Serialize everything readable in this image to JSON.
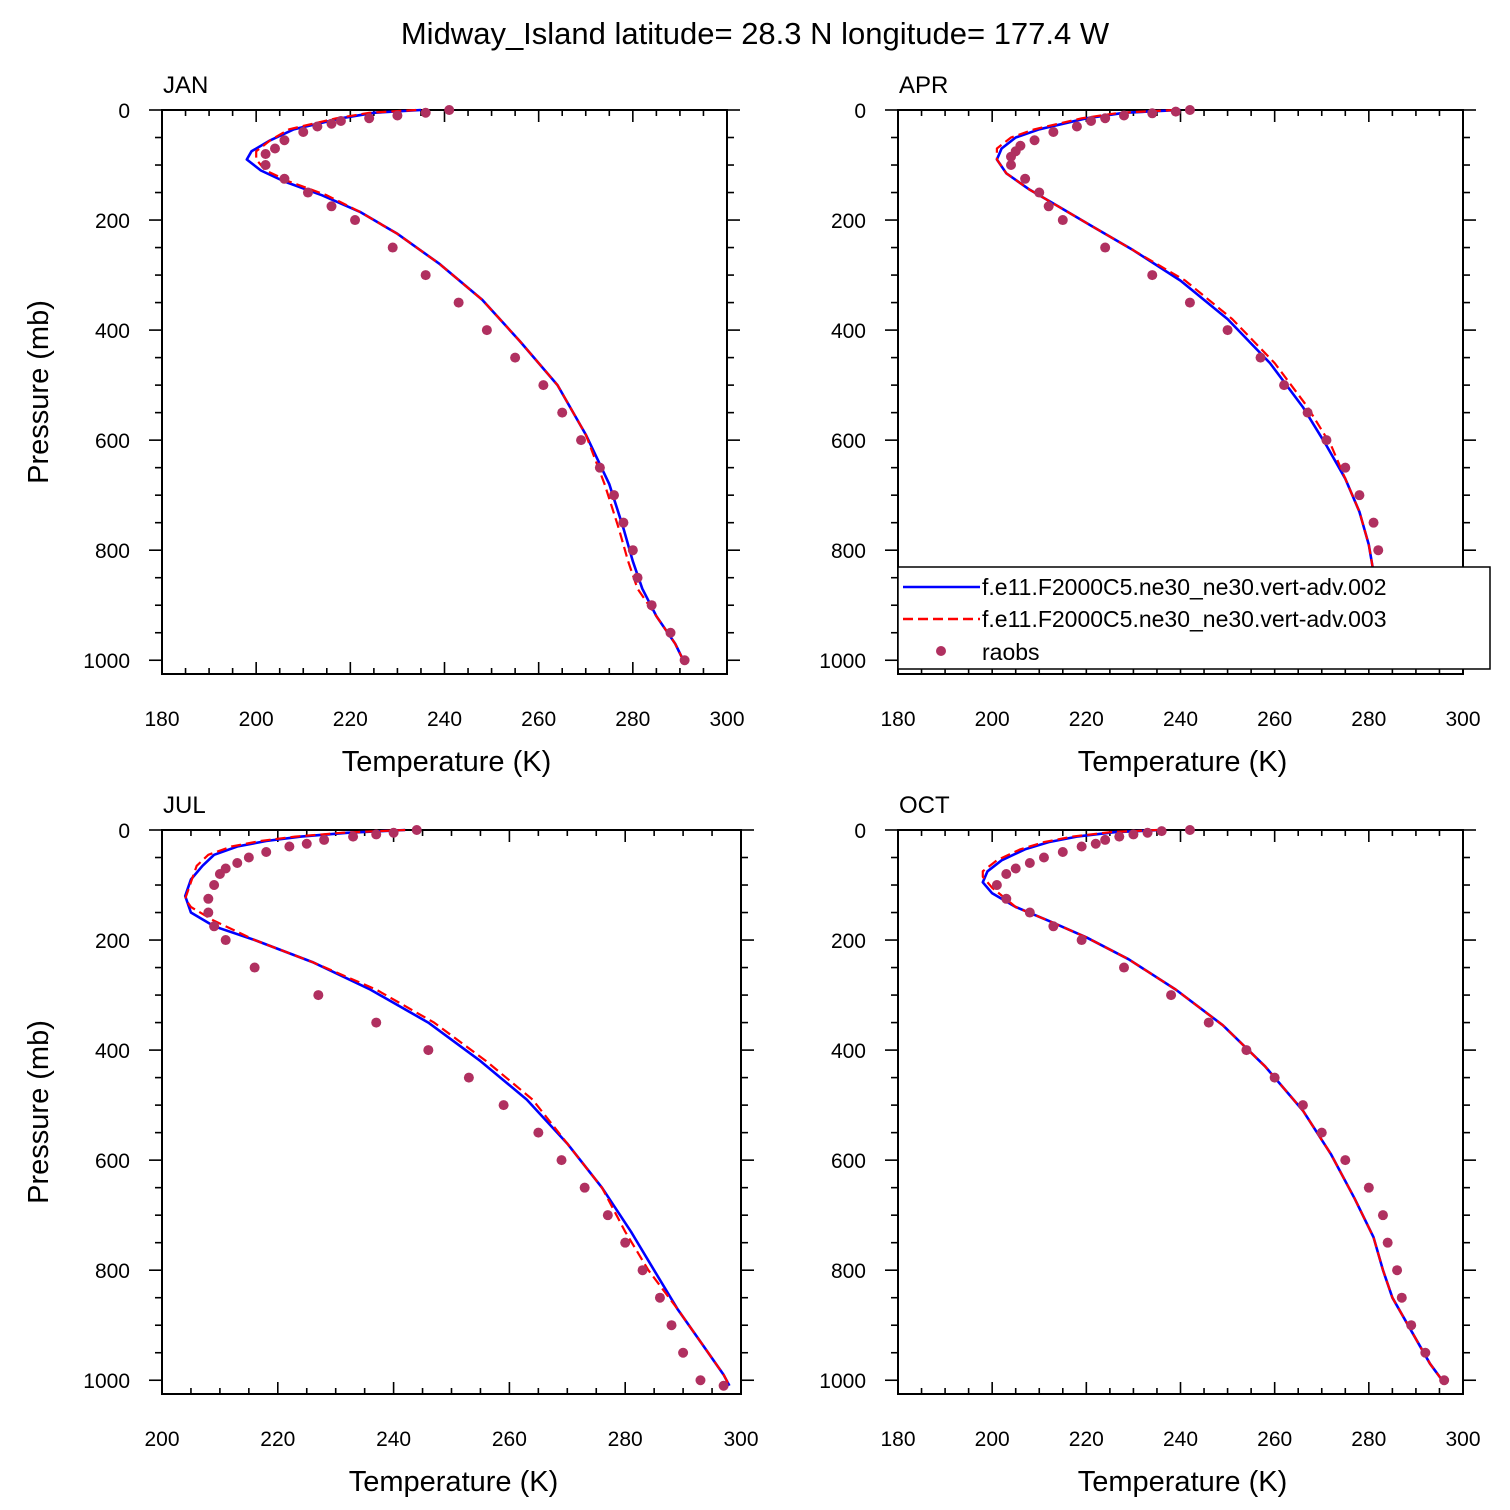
{
  "figure": {
    "title": "Midway_Island  latitude= 28.3 N longitude= 177.4 W"
  },
  "legend": {
    "entries": [
      {
        "label": "f.e11.F2000C5.ne30_ne30.vert-adv.002",
        "color": "#0000ff",
        "style": "solid"
      },
      {
        "label": "f.e11.F2000C5.ne30_ne30.vert-adv.003",
        "color": "#ff0000",
        "style": "dashed"
      },
      {
        "label": "raobs",
        "color": "#b03060",
        "style": "marker"
      }
    ]
  },
  "chart_data": [
    {
      "type": "line",
      "title": "JAN",
      "xlabel": "Temperature (K)",
      "ylabel": "Pressure (mb)",
      "xlim": [
        180,
        300
      ],
      "ylim": [
        1025,
        0
      ],
      "xticks": [
        180,
        200,
        220,
        240,
        260,
        280,
        300
      ],
      "yticks": [
        0,
        200,
        400,
        600,
        800,
        1000
      ],
      "series": [
        {
          "name": "f.e11.F2000C5.ne30_ne30.vert-adv.002",
          "color": "#0000ff",
          "x": [
            235,
            225,
            218,
            213,
            208,
            203,
            199,
            198,
            201,
            206,
            214,
            222,
            230,
            239,
            248,
            256,
            264,
            270,
            275,
            278,
            280,
            282,
            285,
            289,
            291
          ],
          "y": [
            0,
            5,
            15,
            25,
            35,
            55,
            75,
            90,
            110,
            130,
            155,
            185,
            225,
            280,
            345,
            420,
            500,
            590,
            680,
            760,
            820,
            870,
            920,
            970,
            1005
          ]
        },
        {
          "name": "f.e11.F2000C5.ne30_ne30.vert-adv.003",
          "color": "#ff0000",
          "dashed": true,
          "x": [
            234,
            224,
            217,
            212,
            207,
            203,
            200,
            200,
            202,
            207,
            215,
            222,
            230,
            239,
            248,
            256,
            264,
            270,
            274,
            277,
            279,
            281,
            285,
            289,
            291
          ],
          "y": [
            0,
            5,
            15,
            25,
            35,
            55,
            75,
            90,
            110,
            130,
            155,
            185,
            225,
            280,
            345,
            420,
            500,
            590,
            680,
            760,
            820,
            870,
            920,
            970,
            1005
          ]
        },
        {
          "name": "raobs",
          "color": "#b03060",
          "markers": true,
          "x": [
            241,
            236,
            230,
            224,
            218,
            216,
            213,
            210,
            206,
            204,
            202,
            202,
            206,
            211,
            216,
            221,
            229,
            236,
            243,
            249,
            255,
            261,
            265,
            269,
            273,
            276,
            278,
            280,
            281,
            284,
            288,
            291
          ],
          "y": [
            0,
            5,
            10,
            15,
            20,
            25,
            30,
            40,
            55,
            70,
            80,
            100,
            125,
            150,
            175,
            200,
            250,
            300,
            350,
            400,
            450,
            500,
            550,
            600,
            650,
            700,
            750,
            800,
            850,
            900,
            950,
            1000
          ]
        }
      ]
    },
    {
      "type": "line",
      "title": "APR",
      "xlabel": "Temperature (K)",
      "ylabel": "",
      "xlim": [
        180,
        300
      ],
      "ylim": [
        1025,
        0
      ],
      "xticks": [
        180,
        200,
        220,
        240,
        260,
        280,
        300
      ],
      "yticks": [
        0,
        200,
        400,
        600,
        800,
        1000
      ],
      "series": [
        {
          "name": "f.e11.F2000C5.ne30_ne30.vert-adv.002",
          "color": "#0000ff",
          "x": [
            240,
            228,
            220,
            215,
            210,
            205,
            202,
            201,
            203,
            208,
            214,
            221,
            230,
            240,
            250,
            259,
            266,
            271,
            275,
            278,
            280,
            281,
            282,
            285,
            289,
            291
          ],
          "y": [
            0,
            5,
            15,
            25,
            35,
            50,
            70,
            90,
            115,
            145,
            175,
            210,
            255,
            310,
            380,
            460,
            540,
            610,
            670,
            730,
            790,
            840,
            890,
            930,
            970,
            1005
          ]
        },
        {
          "name": "f.e11.F2000C5.ne30_ne30.vert-adv.003",
          "color": "#ff0000",
          "dashed": true,
          "x": [
            239,
            227,
            219,
            214,
            209,
            204,
            201,
            201,
            203,
            208,
            214,
            221,
            230,
            241,
            251,
            260,
            267,
            272,
            275,
            278,
            280,
            281,
            282,
            285,
            289,
            291
          ],
          "y": [
            0,
            5,
            15,
            25,
            35,
            50,
            70,
            90,
            115,
            145,
            175,
            210,
            255,
            310,
            380,
            460,
            540,
            610,
            670,
            730,
            790,
            840,
            890,
            930,
            970,
            1005
          ]
        },
        {
          "name": "raobs",
          "color": "#b03060",
          "markers": true,
          "x": [
            242,
            239,
            234,
            228,
            224,
            221,
            218,
            213,
            209,
            206,
            205,
            204,
            204,
            207,
            210,
            212,
            215,
            224,
            234,
            242,
            250,
            257,
            262,
            267,
            271,
            275,
            278,
            281,
            282,
            283,
            285,
            287,
            288,
            291
          ],
          "y": [
            0,
            3,
            6,
            10,
            15,
            20,
            30,
            40,
            55,
            65,
            75,
            85,
            100,
            125,
            150,
            175,
            200,
            250,
            300,
            350,
            400,
            450,
            500,
            550,
            600,
            650,
            700,
            750,
            800,
            850,
            900,
            925,
            950,
            1000
          ]
        }
      ]
    },
    {
      "type": "line",
      "title": "JUL",
      "xlabel": "Temperature (K)",
      "ylabel": "Pressure (mb)",
      "xlim": [
        200,
        300
      ],
      "ylim": [
        1025,
        0
      ],
      "xticks": [
        200,
        220,
        240,
        260,
        280,
        300
      ],
      "yticks": [
        0,
        200,
        400,
        600,
        800,
        1000
      ],
      "series": [
        {
          "name": "f.e11.F2000C5.ne30_ne30.vert-adv.002",
          "color": "#0000ff",
          "x": [
            242,
            232,
            224,
            218,
            213,
            209,
            207,
            205,
            204,
            205,
            209,
            216,
            226,
            236,
            246,
            255,
            263,
            270,
            276,
            281,
            285,
            289,
            293,
            297,
            298
          ],
          "y": [
            0,
            5,
            12,
            20,
            30,
            45,
            65,
            90,
            120,
            150,
            175,
            200,
            240,
            290,
            350,
            420,
            490,
            570,
            650,
            730,
            800,
            870,
            930,
            990,
            1010
          ]
        },
        {
          "name": "f.e11.F2000C5.ne30_ne30.vert-adv.003",
          "color": "#ff0000",
          "dashed": true,
          "x": [
            242,
            231,
            223,
            217,
            212,
            208,
            206,
            205,
            204,
            205,
            209,
            216,
            226,
            237,
            247,
            256,
            264,
            270,
            276,
            280,
            284,
            289,
            293,
            297,
            298
          ],
          "y": [
            0,
            5,
            12,
            20,
            30,
            45,
            65,
            95,
            125,
            140,
            165,
            200,
            240,
            290,
            350,
            420,
            490,
            570,
            650,
            730,
            800,
            870,
            930,
            990,
            1010
          ]
        },
        {
          "name": "raobs",
          "color": "#b03060",
          "markers": true,
          "x": [
            244,
            240,
            237,
            233,
            228,
            225,
            222,
            218,
            215,
            213,
            211,
            210,
            209,
            208,
            208,
            209,
            211,
            216,
            227,
            237,
            246,
            253,
            259,
            265,
            269,
            273,
            277,
            280,
            283,
            286,
            288,
            290,
            293,
            297
          ],
          "y": [
            0,
            5,
            8,
            12,
            18,
            25,
            30,
            40,
            50,
            60,
            70,
            80,
            100,
            125,
            150,
            175,
            200,
            250,
            300,
            350,
            400,
            450,
            500,
            550,
            600,
            650,
            700,
            750,
            800,
            850,
            900,
            950,
            1000,
            1010
          ]
        }
      ]
    },
    {
      "type": "line",
      "title": "OCT",
      "xlabel": "Temperature (K)",
      "ylabel": "",
      "xlim": [
        180,
        300
      ],
      "ylim": [
        1025,
        0
      ],
      "xticks": [
        180,
        200,
        220,
        240,
        260,
        280,
        300
      ],
      "yticks": [
        0,
        200,
        400,
        600,
        800,
        1000
      ],
      "series": [
        {
          "name": "f.e11.F2000C5.ne30_ne30.vert-adv.002",
          "color": "#0000ff",
          "x": [
            236,
            226,
            218,
            212,
            207,
            202,
            199,
            198,
            200,
            205,
            212,
            220,
            229,
            239,
            249,
            258,
            266,
            272,
            277,
            281,
            283,
            285,
            289,
            293,
            296
          ],
          "y": [
            0,
            4,
            12,
            22,
            35,
            55,
            75,
            95,
            115,
            140,
            165,
            195,
            235,
            290,
            355,
            430,
            510,
            590,
            670,
            740,
            800,
            850,
            910,
            970,
            1005
          ]
        },
        {
          "name": "f.e11.F2000C5.ne30_ne30.vert-adv.003",
          "color": "#ff0000",
          "dashed": true,
          "x": [
            235,
            225,
            217,
            211,
            206,
            201,
            198,
            198,
            200,
            205,
            212,
            220,
            229,
            239,
            249,
            258,
            266,
            272,
            277,
            281,
            283,
            285,
            289,
            293,
            296
          ],
          "y": [
            0,
            4,
            12,
            22,
            35,
            55,
            75,
            85,
            105,
            140,
            165,
            195,
            235,
            290,
            355,
            430,
            510,
            590,
            670,
            740,
            800,
            850,
            910,
            970,
            1005
          ]
        },
        {
          "name": "raobs",
          "color": "#b03060",
          "markers": true,
          "x": [
            242,
            236,
            233,
            230,
            227,
            224,
            222,
            219,
            215,
            211,
            208,
            205,
            203,
            201,
            203,
            208,
            213,
            219,
            228,
            238,
            246,
            254,
            260,
            266,
            270,
            275,
            280,
            283,
            284,
            286,
            287,
            289,
            292,
            296
          ],
          "y": [
            0,
            2,
            5,
            8,
            12,
            18,
            25,
            30,
            40,
            50,
            60,
            70,
            80,
            100,
            125,
            150,
            175,
            200,
            250,
            300,
            350,
            400,
            450,
            500,
            550,
            600,
            650,
            700,
            750,
            800,
            850,
            900,
            950,
            1000
          ]
        }
      ]
    }
  ]
}
